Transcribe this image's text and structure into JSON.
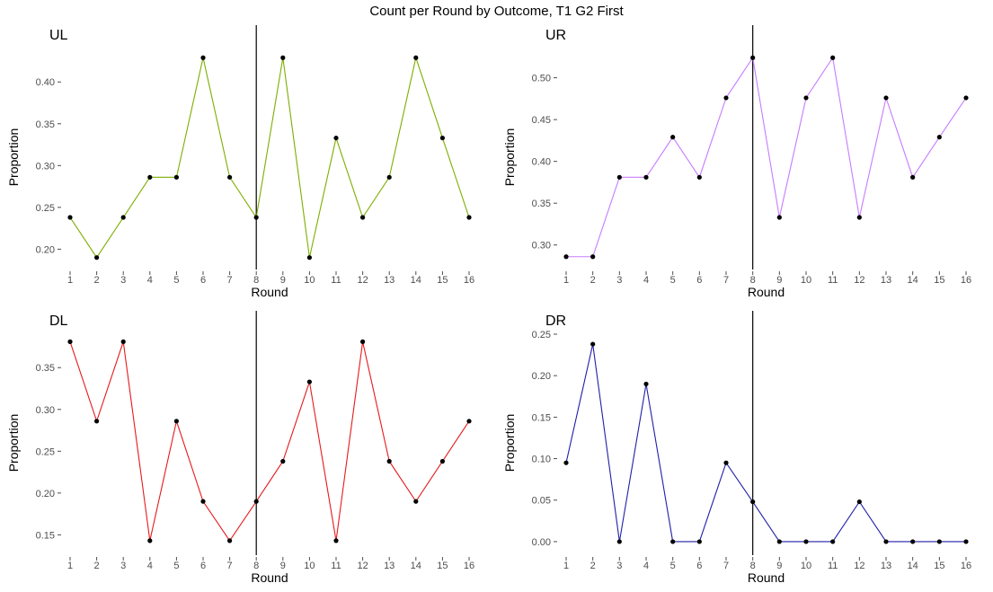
{
  "title": "Count per Round by Outcome, T1 G2 First",
  "chart_data": [
    {
      "type": "line",
      "title": "UL",
      "xlabel": "Round",
      "ylabel": "Proportion",
      "color": "#7cae00",
      "x": [
        1,
        2,
        3,
        4,
        5,
        6,
        7,
        8,
        9,
        10,
        11,
        12,
        13,
        14,
        15,
        16
      ],
      "values": [
        0.238,
        0.19,
        0.238,
        0.286,
        0.286,
        0.429,
        0.286,
        0.238,
        0.429,
        0.19,
        0.333,
        0.238,
        0.286,
        0.429,
        0.333,
        0.238
      ],
      "xlim": [
        1,
        16
      ],
      "ylim": [
        0.18,
        0.44
      ],
      "yticks": [
        0.2,
        0.25,
        0.3,
        0.35,
        0.4
      ],
      "ytick_labels": [
        "0.20",
        "0.25",
        "0.30",
        "0.35",
        "0.40"
      ],
      "vline_x": 8
    },
    {
      "type": "line",
      "title": "UR",
      "xlabel": "Round",
      "ylabel": "Proportion",
      "color": "#c77cff",
      "x": [
        1,
        2,
        3,
        4,
        5,
        6,
        7,
        8,
        9,
        10,
        11,
        12,
        13,
        14,
        15,
        16
      ],
      "values": [
        0.286,
        0.286,
        0.381,
        0.381,
        0.429,
        0.381,
        0.476,
        0.524,
        0.333,
        0.476,
        0.524,
        0.333,
        0.476,
        0.381,
        0.429,
        0.476
      ],
      "xlim": [
        1,
        16
      ],
      "ylim": [
        0.275,
        0.535
      ],
      "yticks": [
        0.3,
        0.35,
        0.4,
        0.45,
        0.5
      ],
      "ytick_labels": [
        "0.30",
        "0.35",
        "0.40",
        "0.45",
        "0.50"
      ],
      "vline_x": 8
    },
    {
      "type": "line",
      "title": "DL",
      "xlabel": "Round",
      "ylabel": "Proportion",
      "color": "#e41a1c",
      "x": [
        1,
        2,
        3,
        4,
        5,
        6,
        7,
        8,
        9,
        10,
        11,
        12,
        13,
        14,
        15,
        16
      ],
      "values": [
        0.381,
        0.286,
        0.381,
        0.143,
        0.286,
        0.19,
        0.143,
        0.19,
        0.238,
        0.333,
        0.143,
        0.381,
        0.238,
        0.19,
        0.238,
        0.286
      ],
      "xlim": [
        1,
        16
      ],
      "ylim": [
        0.13,
        0.39
      ],
      "yticks": [
        0.15,
        0.2,
        0.25,
        0.3,
        0.35
      ],
      "ytick_labels": [
        "0.15",
        "0.20",
        "0.25",
        "0.30",
        "0.35"
      ],
      "vline_x": 8
    },
    {
      "type": "line",
      "title": "DR",
      "xlabel": "Round",
      "ylabel": "Proportion",
      "color": "#1f1fa8",
      "x": [
        1,
        2,
        3,
        4,
        5,
        6,
        7,
        8,
        9,
        10,
        11,
        12,
        13,
        14,
        15,
        16
      ],
      "values": [
        0.095,
        0.238,
        0.0,
        0.19,
        0.0,
        0.0,
        0.095,
        0.048,
        0.0,
        0.0,
        0.0,
        0.048,
        0.0,
        0.0,
        0.0,
        0.0
      ],
      "xlim": [
        1,
        16
      ],
      "ylim": [
        -0.012,
        0.25
      ],
      "yticks": [
        0.0,
        0.05,
        0.1,
        0.15,
        0.2,
        0.25
      ],
      "ytick_labels": [
        "0.00",
        "0.05",
        "0.10",
        "0.15",
        "0.20",
        "0.25"
      ],
      "vline_x": 8
    }
  ]
}
